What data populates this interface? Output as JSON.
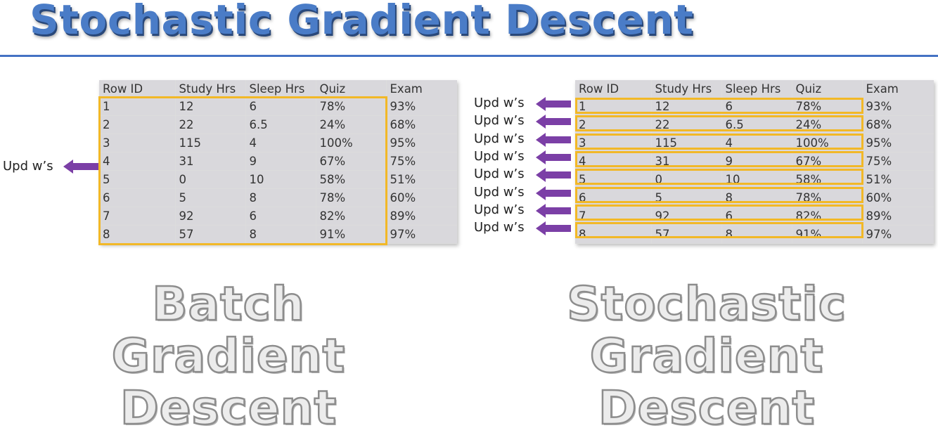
{
  "title": "Stochastic Gradient Descent",
  "columns": [
    "Row ID",
    "Study Hrs",
    "Sleep Hrs",
    "Quiz",
    "Exam"
  ],
  "rows": [
    [
      "1",
      "12",
      "6",
      "78%",
      "93%"
    ],
    [
      "2",
      "22",
      "6.5",
      "24%",
      "68%"
    ],
    [
      "3",
      "115",
      "4",
      "100%",
      "95%"
    ],
    [
      "4",
      "31",
      "9",
      "67%",
      "75%"
    ],
    [
      "5",
      "0",
      "10",
      "58%",
      "51%"
    ],
    [
      "6",
      "5",
      "8",
      "78%",
      "60%"
    ],
    [
      "7",
      "92",
      "6",
      "82%",
      "89%"
    ],
    [
      "8",
      "57",
      "8",
      "91%",
      "97%"
    ]
  ],
  "update_label": "Upd w’s",
  "batch": {
    "label_lines": [
      "Batch",
      "Gradient",
      "Descent"
    ]
  },
  "stochastic": {
    "label_lines": [
      "Stochastic",
      "Gradient",
      "Descent"
    ]
  },
  "colors": {
    "title": "#4a7cc7",
    "rule": "#4472c4",
    "highlight": "#f2b827",
    "arrow": "#7b3fa6",
    "exam_column": "#d9d8dc"
  },
  "icons": {
    "update_arrow": "left-arrow-icon"
  }
}
